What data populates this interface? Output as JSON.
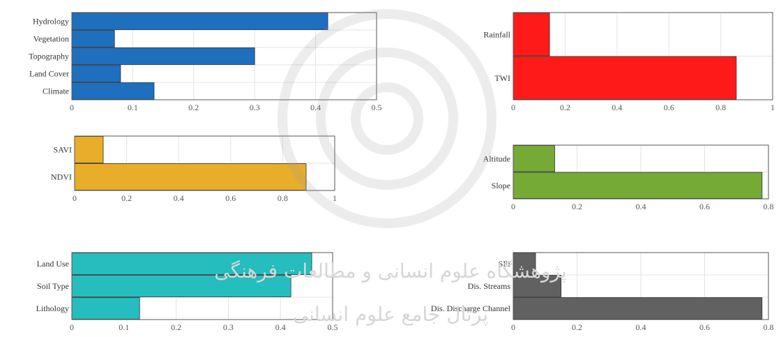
{
  "watermark": {
    "line1": "پژوهشگاه علوم انسانی و مطالعات فرهنگی",
    "line2": "پرتال جامع علوم انسانی",
    "color": "#dcdcdc"
  },
  "chart_data": [
    {
      "type": "bar",
      "orientation": "horizontal",
      "categories": [
        "Hydrology",
        "Vegetation",
        "Topography",
        "Land Cover",
        "Climate"
      ],
      "values": [
        0.42,
        0.07,
        0.3,
        0.08,
        0.135
      ],
      "xlim": [
        0,
        0.5
      ],
      "xticks": [
        "0",
        "0.1",
        "0.2",
        "0.3",
        "0.4",
        "0.5"
      ],
      "xtick_values": [
        0,
        0.1,
        0.2,
        0.3,
        0.4,
        0.5
      ],
      "color": "#1f6fbf",
      "grid": true
    },
    {
      "type": "bar",
      "orientation": "horizontal",
      "categories": [
        "Rainfall",
        "TWI"
      ],
      "values": [
        0.14,
        0.86
      ],
      "xlim": [
        0,
        1
      ],
      "xticks": [
        "0",
        "0.2",
        "0.4",
        "0.6",
        "0.8",
        "1"
      ],
      "xtick_values": [
        0,
        0.2,
        0.4,
        0.6,
        0.8,
        1
      ],
      "color": "#ff1a1a",
      "grid": true
    },
    {
      "type": "bar",
      "orientation": "horizontal",
      "categories": [
        "SAVI",
        "NDVI"
      ],
      "values": [
        0.11,
        0.89
      ],
      "xlim": [
        0,
        1
      ],
      "xticks": [
        "0",
        "0.2",
        "0.4",
        "0.6",
        "0.8",
        "1"
      ],
      "xtick_values": [
        0,
        0.2,
        0.4,
        0.6,
        0.8,
        1
      ],
      "color": "#e8ae2a",
      "grid": true
    },
    {
      "type": "bar",
      "orientation": "horizontal",
      "categories": [
        "Altitude",
        "Slope"
      ],
      "values": [
        0.13,
        0.78
      ],
      "xlim": [
        0,
        0.8
      ],
      "xticks": [
        "0",
        "0.2",
        "0.4",
        "0.6",
        "0.8"
      ],
      "xtick_values": [
        0,
        0.2,
        0.4,
        0.6,
        0.8
      ],
      "color": "#74aa35",
      "grid": true
    },
    {
      "type": "bar",
      "orientation": "horizontal",
      "categories": [
        "Land Use",
        "Soil Type",
        "Lithology"
      ],
      "values": [
        0.46,
        0.42,
        0.13
      ],
      "xlim": [
        0,
        0.5
      ],
      "xticks": [
        "0",
        "0.1",
        "0.2",
        "0.3",
        "0.4",
        "0.5"
      ],
      "xtick_values": [
        0,
        0.1,
        0.2,
        0.3,
        0.4,
        0.5
      ],
      "color": "#25bdbd",
      "grid": true
    },
    {
      "type": "bar",
      "orientation": "horizontal",
      "categories": [
        "SPI",
        "Dis. Streams",
        "Dis. Discharge Channel"
      ],
      "values": [
        0.07,
        0.15,
        0.78
      ],
      "xlim": [
        0,
        0.8
      ],
      "xticks": [
        "0",
        "0.2",
        "0.4",
        "0.6",
        "0.8"
      ],
      "xtick_values": [
        0,
        0.2,
        0.4,
        0.6,
        0.8
      ],
      "color": "#616161",
      "grid": true
    }
  ]
}
